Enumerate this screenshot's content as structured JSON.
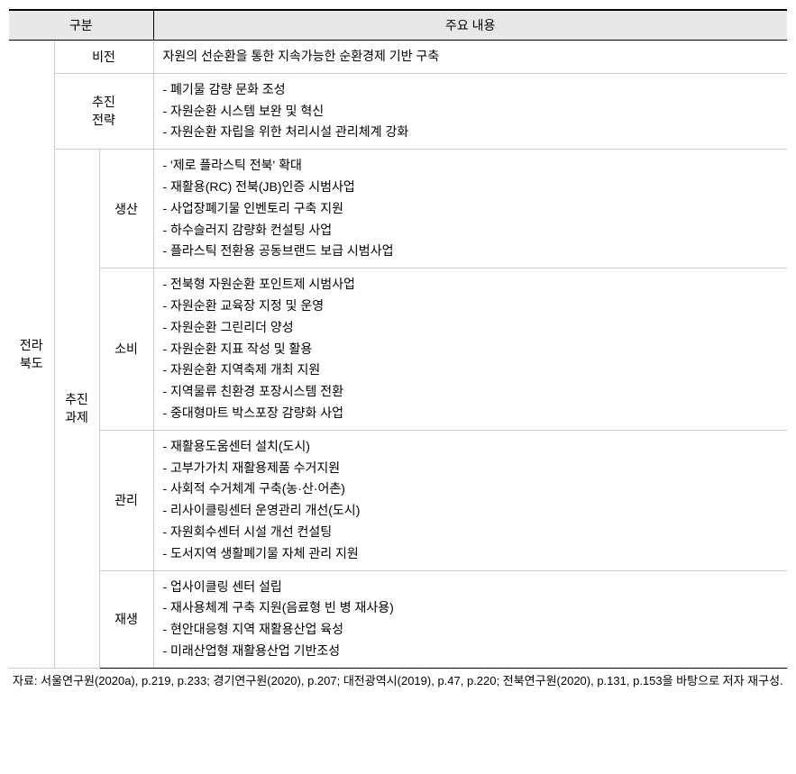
{
  "header": {
    "col1": "구분",
    "col2": "주요 내용"
  },
  "region": "전라\n북도",
  "rows": {
    "vision": {
      "label": "비전",
      "content": "자원의 선순환을 통한 지속가능한 순환경제 기반 구축"
    },
    "strategy": {
      "label": "추진\n전략",
      "items": [
        "- 폐기물 감량 문화 조성",
        "- 자원순환 시스템 보완 및 혁신",
        "- 자원순환 자립을 위한 처리시설 관리체계 강화"
      ]
    },
    "tasks": {
      "label": "추진\n과제",
      "subsections": {
        "production": {
          "sublabel": "생산",
          "items": [
            "- '제로 플라스틱 전북' 확대",
            "- 재활용(RC) 전북(JB)인증 시범사업",
            "- 사업장폐기물 인벤토리 구축 지원",
            "- 하수슬러지 감량화 컨설팅 사업",
            "- 플라스틱 전환용 공동브랜드 보급 시범사업"
          ]
        },
        "consumption": {
          "sublabel": "소비",
          "items": [
            "- 전북형 자원순환 포인트제 시범사업",
            "- 자원순환 교육장 지정 및 운영",
            "- 자원순환 그린리더 양성",
            "- 자원순환 지표 작성 및 활용",
            "- 자원순환 지역축제 개최 지원",
            "- 지역물류 친환경 포장시스템 전환",
            "- 중대형마트 박스포장 감량화 사업"
          ]
        },
        "management": {
          "sublabel": "관리",
          "items": [
            "- 재활용도움센터 설치(도시)",
            "- 고부가가치 재활용제품 수거지원",
            "- 사회적 수거체계 구축(농·산·어촌)",
            "- 리사이클링센터 운영관리 개선(도시)",
            "- 자원회수센터 시설 개선 컨설팅",
            "- 도서지역 생활폐기물 자체 관리 지원"
          ]
        },
        "regeneration": {
          "sublabel": "재생",
          "items": [
            "- 업사이클링 센터 설립",
            "- 재사용체계 구축 지원(음료형 빈 병 재사용)",
            "- 현안대응형 지역 재활용산업 육성",
            "- 미래산업형 재활용산업 기반조성"
          ]
        }
      }
    }
  },
  "source": "자료: 서울연구원(2020a), p.219, p.233; 경기연구원(2020), p.207; 대전광역시(2019), p.47, p.220; 전북연구원(2020), p.131, p.153을 바탕으로 저자 재구성.",
  "styling": {
    "header_bg": "#e8e8e8",
    "border_color": "#000000",
    "inner_border_color": "#cccccc",
    "font_family": "Malgun Gothic",
    "base_font_size": 14,
    "source_font_size": 13,
    "line_height": 1.7
  }
}
